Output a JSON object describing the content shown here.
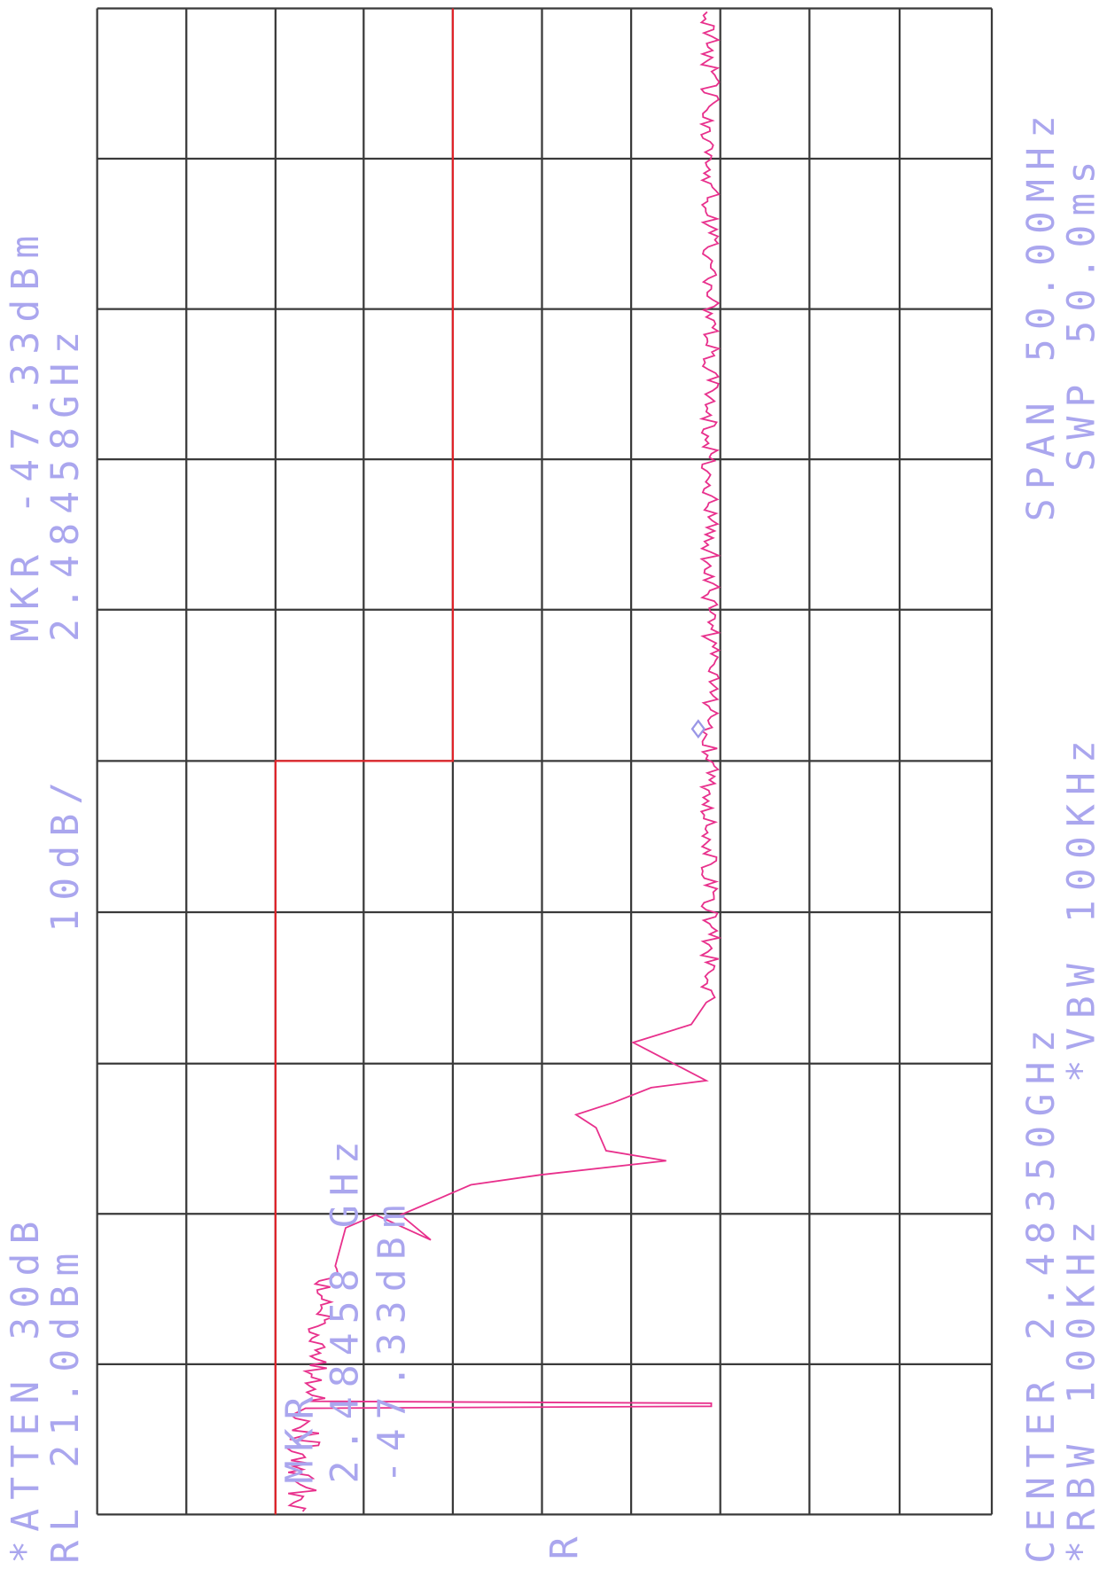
{
  "header": {
    "atten": "*ATTEN 30dB",
    "ref_level": "RL 21.0dBm",
    "marker_level": "MKR -47.33dBm",
    "marker_freq": "2.48458GHz",
    "scale": "10dB/"
  },
  "marker_readout": {
    "label": "MKR",
    "freq": "2.48458 GHz",
    "level": "-47.33dBm"
  },
  "footer": {
    "center": "CENTER 2.48350GHz",
    "span": "SPAN 50.00MHz",
    "rbw": "*RBW 100KHz",
    "vbw": "*VBW 100KHz",
    "sweep": "SWP 50.0ms"
  },
  "trace_label": "R"
}
